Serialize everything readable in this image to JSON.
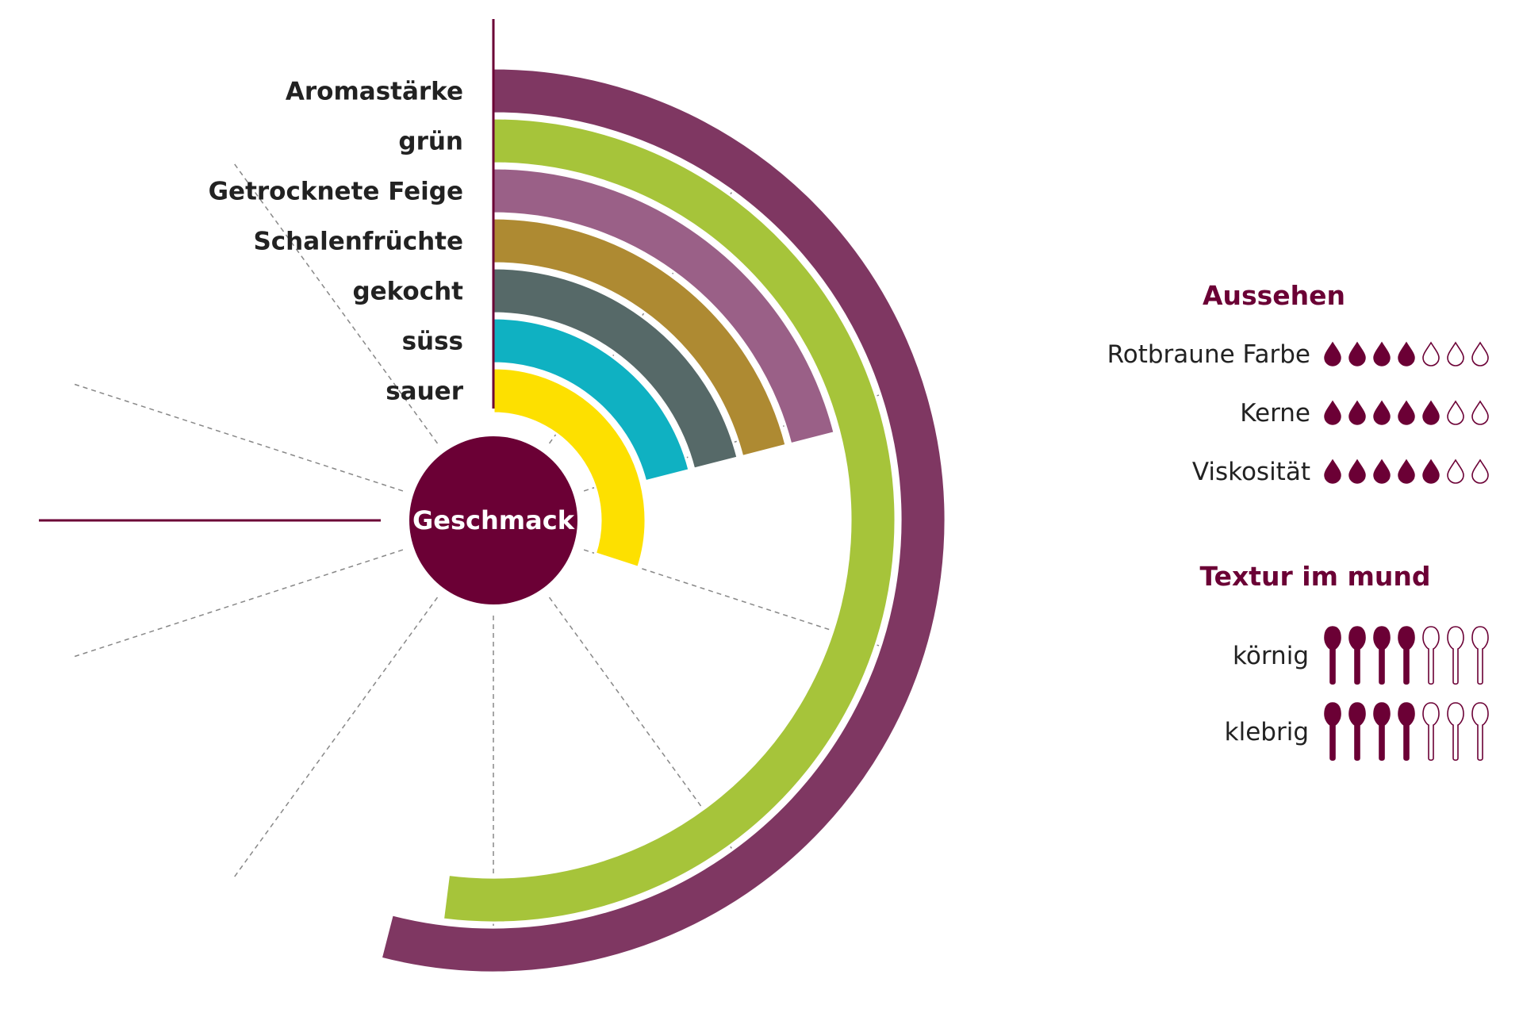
{
  "chart_data": {
    "type": "radial-bar",
    "center_label": "Geschmack",
    "scale_max": 10,
    "series": [
      {
        "name": "Aromastärke",
        "value": 5.4,
        "color": "#7f3762"
      },
      {
        "name": "grün",
        "value": 5.2,
        "color": "#a6c43a"
      },
      {
        "name": "Getrocknete Feige",
        "value": 2.1,
        "color": "#9a6087"
      },
      {
        "name": "Schalenfrüchte",
        "value": 2.1,
        "color": "#ae8a32"
      },
      {
        "name": "gekocht",
        "value": 2.1,
        "color": "#566968"
      },
      {
        "name": "süss",
        "value": 2.1,
        "color": "#0fb1c2"
      },
      {
        "name": "sauer",
        "value": 3.0,
        "color": "#fde000"
      }
    ],
    "accent_color": "#6b0035"
  },
  "aussehen": {
    "title": "Aussehen",
    "icon": "drop-icon",
    "max": 7,
    "items": [
      {
        "label": "Rotbraune Farbe",
        "value": 4
      },
      {
        "label": "Kerne",
        "value": 5
      },
      {
        "label": "Viskosität",
        "value": 5
      }
    ]
  },
  "textur": {
    "title": "Textur im mund",
    "icon": "spoon-icon",
    "max": 7,
    "items": [
      {
        "label": "körnig",
        "value": 4
      },
      {
        "label": "klebrig",
        "value": 4
      }
    ]
  }
}
